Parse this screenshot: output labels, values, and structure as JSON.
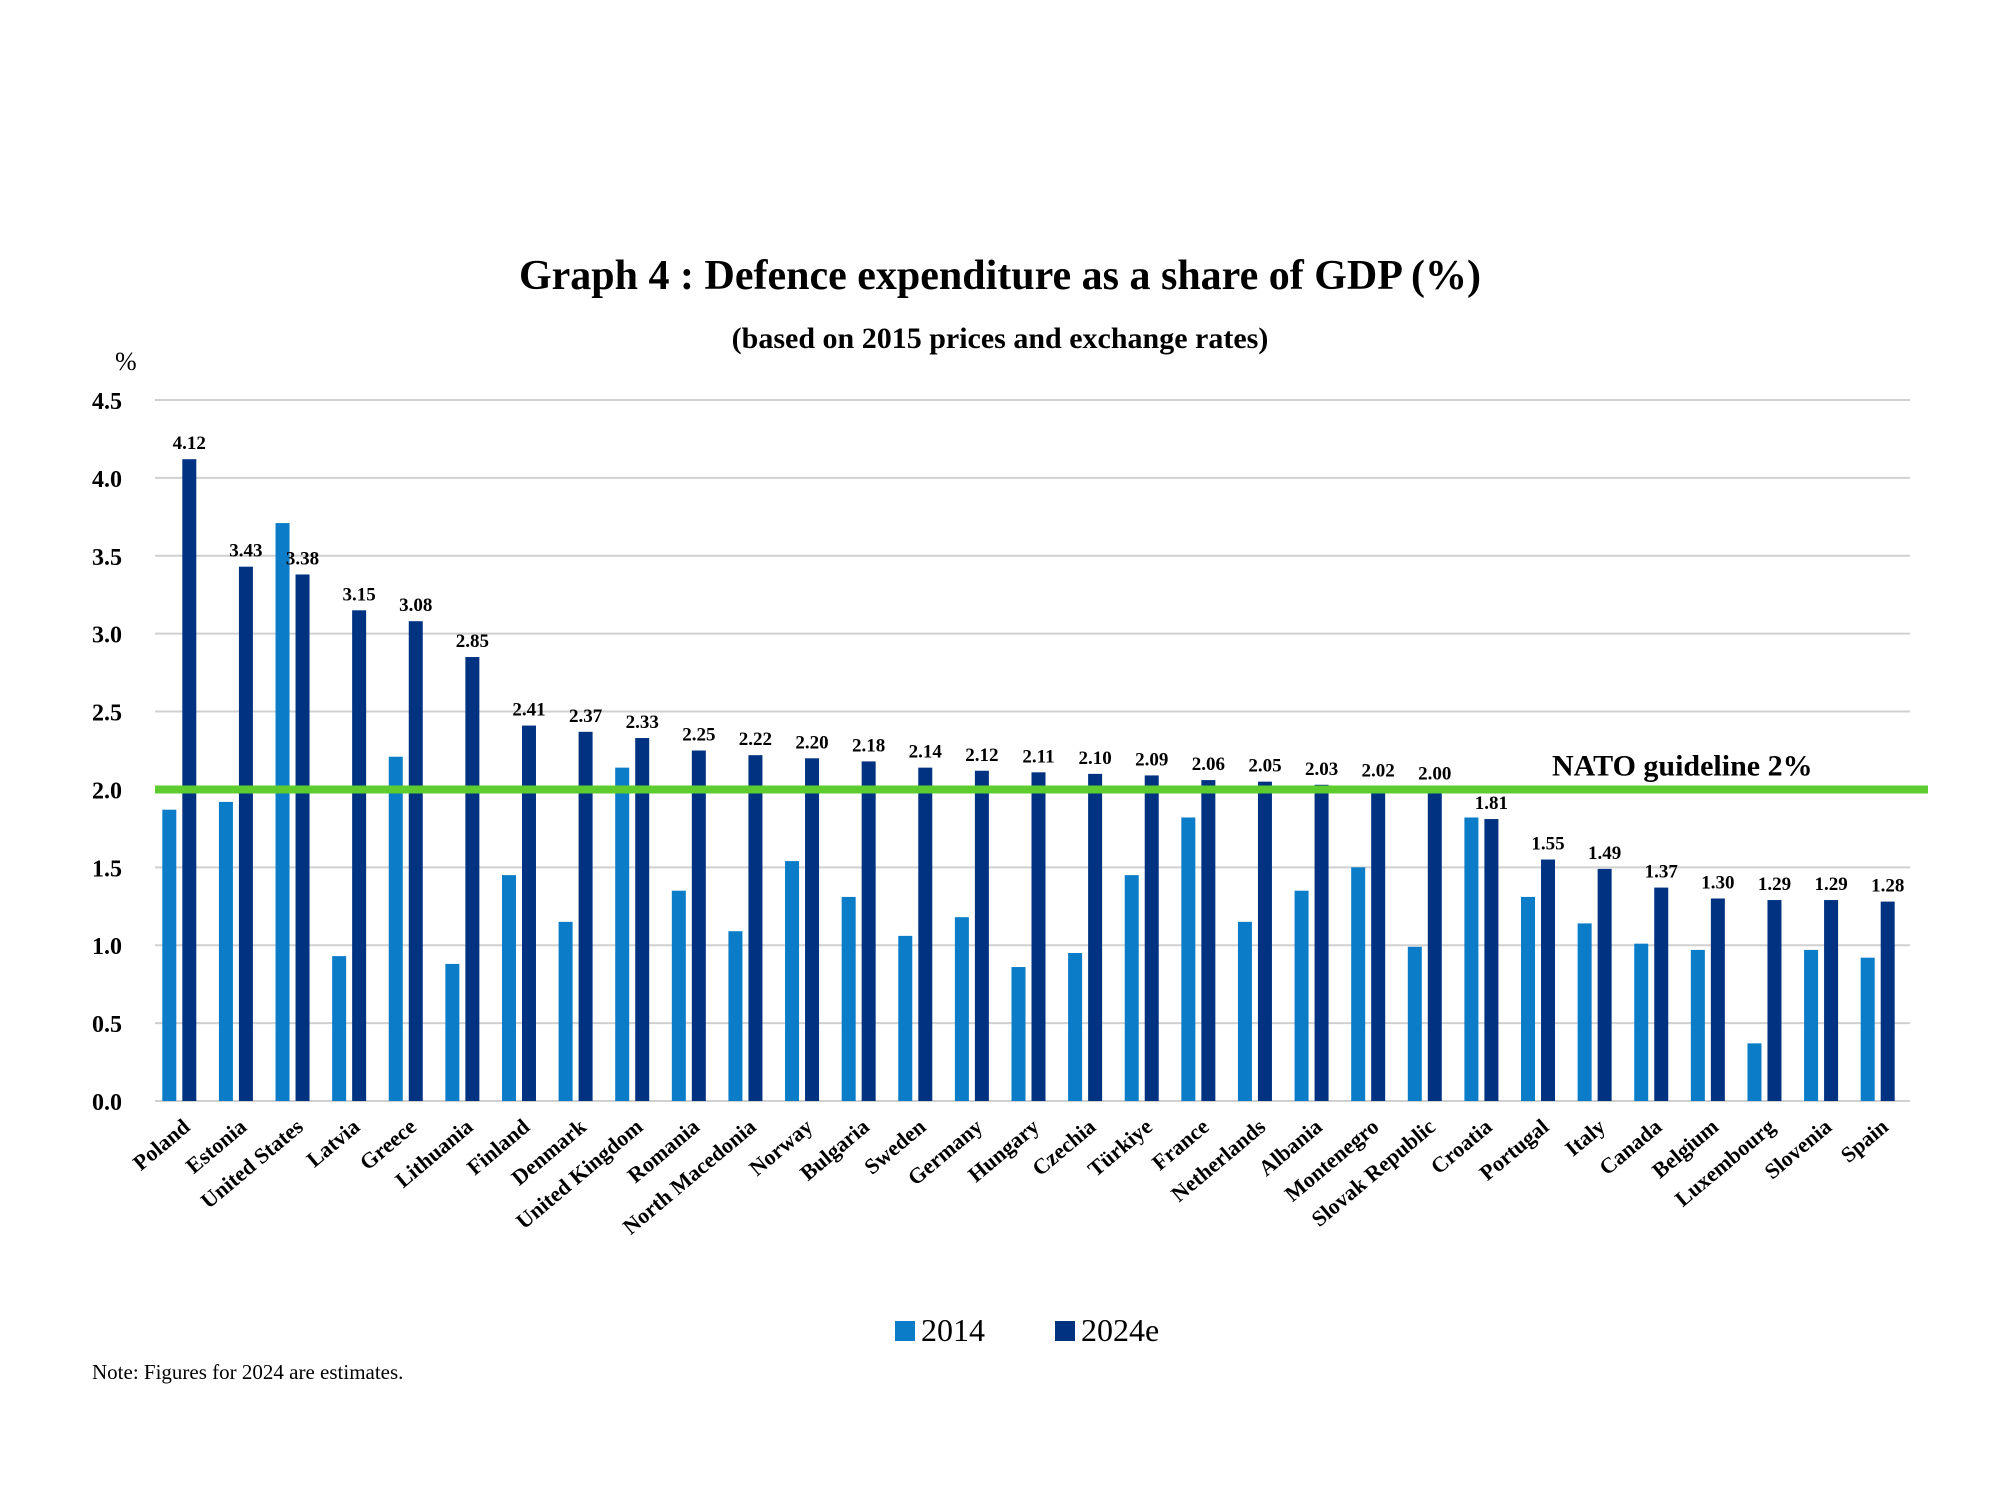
{
  "chart_data": {
    "type": "bar",
    "title": "Graph 4 : Defence expenditure as a share of GDP (%)",
    "subtitle": "(based on 2015 prices and exchange rates)",
    "ylabel": "%",
    "ylim": [
      0,
      4.5
    ],
    "yticks": [
      "0.0",
      "0.5",
      "1.0",
      "1.5",
      "2.0",
      "2.5",
      "3.0",
      "3.5",
      "4.0",
      "4.5"
    ],
    "grid": true,
    "legend_position": "bottom",
    "categories": [
      "Poland",
      "Estonia",
      "United States",
      "Latvia",
      "Greece",
      "Lithuania",
      "Finland",
      "Denmark",
      "United Kingdom",
      "Romania",
      "North Macedonia",
      "Norway",
      "Bulgaria",
      "Sweden",
      "Germany",
      "Hungary",
      "Czechia",
      "Türkiye",
      "France",
      "Netherlands",
      "Albania",
      "Montenegro",
      "Slovak Republic",
      "Croatia",
      "Portugal",
      "Italy",
      "Canada",
      "Belgium",
      "Luxembourg",
      "Slovenia",
      "Spain"
    ],
    "series": [
      {
        "name": "2014",
        "color": "#0a7cc8",
        "values": [
          1.87,
          1.92,
          3.71,
          0.93,
          2.21,
          0.88,
          1.45,
          1.15,
          2.14,
          1.35,
          1.09,
          1.54,
          1.31,
          1.06,
          1.18,
          0.86,
          0.95,
          1.45,
          1.82,
          1.15,
          1.35,
          1.5,
          0.99,
          1.82,
          1.31,
          1.14,
          1.01,
          0.97,
          0.37,
          0.97,
          0.92
        ]
      },
      {
        "name": "2024e",
        "color": "#003282",
        "values": [
          4.12,
          3.43,
          3.38,
          3.15,
          3.08,
          2.85,
          2.41,
          2.37,
          2.33,
          2.25,
          2.22,
          2.2,
          2.18,
          2.14,
          2.12,
          2.11,
          2.1,
          2.09,
          2.06,
          2.05,
          2.03,
          2.02,
          2.0,
          1.81,
          1.55,
          1.49,
          1.37,
          1.3,
          1.29,
          1.29,
          1.28
        ],
        "data_labels": [
          "4.12",
          "3.43",
          "3.38",
          "3.15",
          "3.08",
          "2.85",
          "2.41",
          "2.37",
          "2.33",
          "2.25",
          "2.22",
          "2.20",
          "2.18",
          "2.14",
          "2.12",
          "2.11",
          "2.10",
          "2.09",
          "2.06",
          "2.05",
          "2.03",
          "2.02",
          "2.00",
          "1.81",
          "1.55",
          "1.49",
          "1.37",
          "1.30",
          "1.29",
          "1.29",
          "1.28"
        ]
      }
    ],
    "reference_line": {
      "value": 2.0,
      "label": "NATO guideline 2%",
      "color": "#5dcc2e"
    },
    "note": "Note: Figures for 2024 are estimates."
  }
}
